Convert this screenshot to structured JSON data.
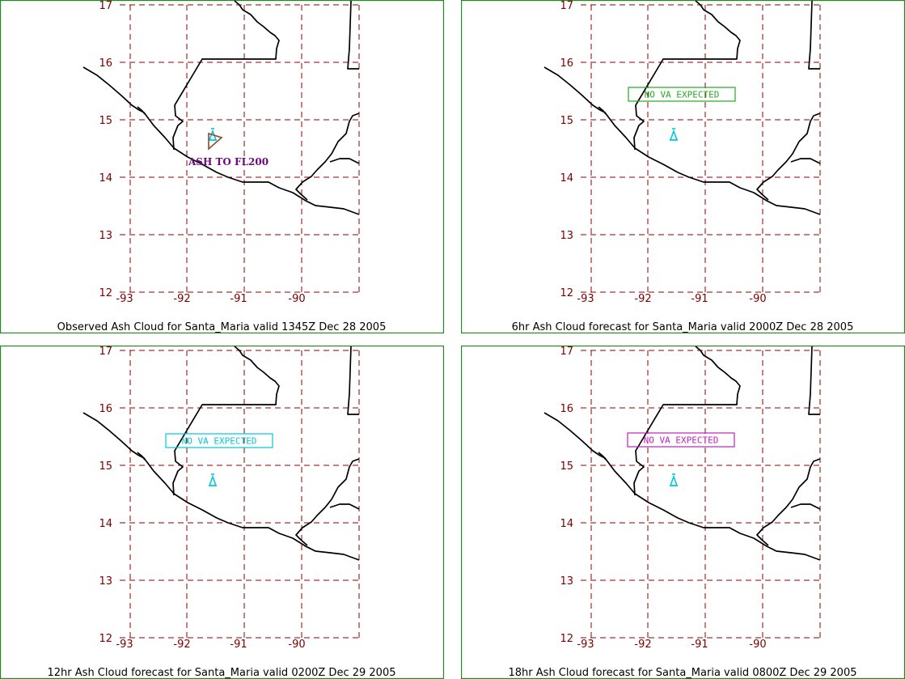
{
  "lon_ticks": [
    "-93",
    "-92",
    "-91",
    "-90"
  ],
  "lat_ticks": [
    "17",
    "16",
    "15",
    "14",
    "13",
    "12"
  ],
  "colors": {
    "frame": "#1f8a1f",
    "grid": "#8b0000",
    "volcano": "#00c8e0",
    "ash_outline_observed": "#8b4a2a"
  },
  "panels": [
    {
      "caption": "Observed Ash Cloud for Santa_Maria valid 1345Z Dec 28 2005",
      "ash_label": "ASH TO FL200",
      "no_va_label": "",
      "no_va_color": ""
    },
    {
      "caption": "6hr Ash Cloud forecast for Santa_Maria valid 2000Z Dec 28 2005",
      "ash_label": "",
      "no_va_label": "NO VA EXPECTED",
      "no_va_color": "#22aa22"
    },
    {
      "caption": "12hr Ash Cloud forecast for Santa_Maria valid 0200Z Dec 29 2005",
      "ash_label": "",
      "no_va_label": "NO VA EXPECTED",
      "no_va_color": "#00c8d8"
    },
    {
      "caption": "18hr Ash Cloud forecast for Santa_Maria valid 0800Z Dec 29 2005",
      "ash_label": "",
      "no_va_label": "NO VA EXPECTED",
      "no_va_color": "#c020c0"
    }
  ]
}
